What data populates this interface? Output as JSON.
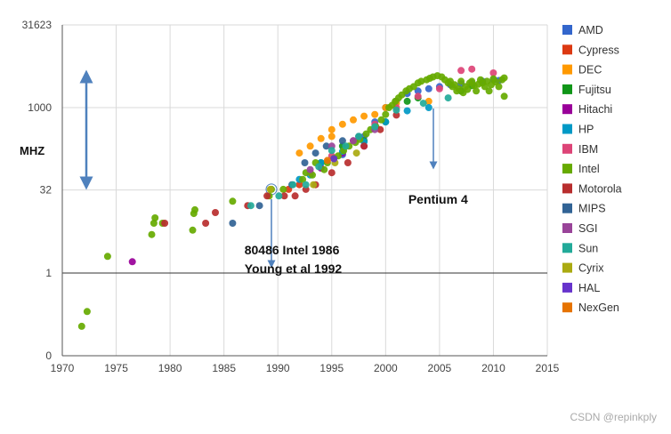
{
  "chart_data": {
    "type": "scatter",
    "title": "",
    "xlabel": "",
    "ylabel": "MHZ",
    "xlim": [
      1970,
      2015
    ],
    "ylim": [
      0.03162,
      31623
    ],
    "yscale": "log",
    "x_ticks": [
      1970,
      1975,
      1980,
      1985,
      1990,
      1995,
      2000,
      2005,
      2010,
      2015
    ],
    "y_ticks": [
      {
        "value": 0.03162,
        "label": "0"
      },
      {
        "value": 1,
        "label": "1"
      },
      {
        "value": 32,
        "label": "32"
      },
      {
        "value": 1000,
        "label": "1000"
      },
      {
        "value": 31623,
        "label": "31623"
      }
    ],
    "legend_position": "right",
    "series": [
      {
        "name": "AMD",
        "color": "#3366cc",
        "points": [
          [
            1996,
            140
          ],
          [
            1998,
            300
          ],
          [
            1999,
            550
          ],
          [
            2000,
            1000
          ],
          [
            2001,
            1300
          ],
          [
            2002,
            1800
          ],
          [
            2003,
            2000
          ],
          [
            2004,
            2200
          ],
          [
            2005,
            2400
          ],
          [
            2006,
            2600
          ],
          [
            2007,
            2700
          ],
          [
            2008,
            2800
          ],
          [
            2009,
            3000
          ],
          [
            2010,
            3200
          ],
          [
            2010.5,
            3100
          ]
        ]
      },
      {
        "name": "Cypress",
        "color": "#dc3912",
        "points": [
          [
            1991,
            33
          ],
          [
            1992,
            40
          ]
        ]
      },
      {
        "name": "DEC",
        "color": "#ff9900",
        "points": [
          [
            1992,
            150
          ],
          [
            1993,
            200
          ],
          [
            1994,
            275
          ],
          [
            1995,
            300
          ],
          [
            1995,
            400
          ],
          [
            1996,
            500
          ],
          [
            1997,
            600
          ],
          [
            1998,
            700
          ],
          [
            1999,
            750
          ],
          [
            2000,
            1000
          ],
          [
            2001,
            1200
          ],
          [
            2004,
            1300
          ]
        ]
      },
      {
        "name": "Fujitsu",
        "color": "#109618",
        "points": [
          [
            1994,
            100
          ],
          [
            1996,
            200
          ],
          [
            1998,
            250
          ],
          [
            2000,
            550
          ],
          [
            2002,
            1300
          ],
          [
            2003,
            1500
          ],
          [
            2007,
            2000
          ],
          [
            2008,
            2500
          ]
        ]
      },
      {
        "name": "Hitachi",
        "color": "#990099",
        "points": [
          [
            1976.5,
            1.6
          ],
          [
            1994,
            80
          ],
          [
            1996,
            150
          ],
          [
            1998,
            200
          ]
        ]
      },
      {
        "name": "HP",
        "color": "#0099c6",
        "points": [
          [
            1992,
            50
          ],
          [
            1993,
            60
          ],
          [
            1994,
            100
          ],
          [
            1996,
            160
          ],
          [
            1998,
            240
          ],
          [
            2000,
            550
          ],
          [
            2002,
            875
          ],
          [
            2004,
            1000
          ]
        ]
      },
      {
        "name": "IBM",
        "color": "#dd4477",
        "points": [
          [
            1993,
            66
          ],
          [
            1995,
            133
          ],
          [
            1997,
            250
          ],
          [
            1999,
            500
          ],
          [
            2001,
            1000
          ],
          [
            2003,
            1600
          ],
          [
            2005,
            2200
          ],
          [
            2007,
            4700
          ],
          [
            2008,
            5000
          ],
          [
            2010,
            4250
          ]
        ]
      },
      {
        "name": "Intel",
        "color": "#66aa00",
        "points": [
          [
            1971.8,
            0.108
          ],
          [
            1972.3,
            0.2
          ],
          [
            1974.2,
            2
          ],
          [
            1978.3,
            5
          ],
          [
            1978.5,
            8
          ],
          [
            1978.6,
            10
          ],
          [
            1979.3,
            8
          ],
          [
            1982.1,
            6
          ],
          [
            1982.2,
            12
          ],
          [
            1982.3,
            14
          ],
          [
            1985.8,
            20
          ],
          [
            1989.2,
            25
          ],
          [
            1989.4,
            33
          ],
          [
            1990.5,
            33
          ],
          [
            1992.3,
            50
          ],
          [
            1992.6,
            66
          ],
          [
            1993.2,
            60
          ],
          [
            1993.5,
            100
          ],
          [
            1994.3,
            75
          ],
          [
            1994.6,
            100
          ],
          [
            1995.2,
            120
          ],
          [
            1995.6,
            133
          ],
          [
            1996.1,
            166
          ],
          [
            1996.6,
            200
          ],
          [
            1997.2,
            233
          ],
          [
            1997.6,
            266
          ],
          [
            1998.2,
            333
          ],
          [
            1998.6,
            400
          ],
          [
            1999.1,
            450
          ],
          [
            1999.6,
            600
          ],
          [
            2000.0,
            750
          ],
          [
            2000.3,
            1000
          ],
          [
            2000.6,
            1100
          ],
          [
            2000.9,
            1300
          ],
          [
            2001.2,
            1500
          ],
          [
            2001.5,
            1700
          ],
          [
            2001.9,
            2000
          ],
          [
            2002.2,
            2200
          ],
          [
            2002.6,
            2400
          ],
          [
            2003.0,
            2800
          ],
          [
            2003.3,
            3000
          ],
          [
            2003.8,
            3200
          ],
          [
            2004.1,
            3400
          ],
          [
            2004.4,
            3600
          ],
          [
            2004.8,
            3800
          ],
          [
            2005.2,
            3600
          ],
          [
            2005.5,
            3200
          ],
          [
            2005.8,
            2800
          ],
          [
            2006.0,
            3000
          ],
          [
            2006.2,
            2400
          ],
          [
            2006.4,
            2600
          ],
          [
            2006.6,
            2000
          ],
          [
            2006.8,
            2200
          ],
          [
            2007.0,
            3000
          ],
          [
            2007.2,
            1866
          ],
          [
            2007.4,
            2400
          ],
          [
            2007.6,
            2133
          ],
          [
            2007.8,
            2800
          ],
          [
            2008.0,
            3000
          ],
          [
            2008.2,
            2500
          ],
          [
            2008.4,
            2000
          ],
          [
            2008.6,
            2660
          ],
          [
            2008.8,
            3200
          ],
          [
            2009.0,
            2800
          ],
          [
            2009.2,
            2400
          ],
          [
            2009.4,
            3000
          ],
          [
            2009.6,
            2000
          ],
          [
            2009.8,
            2600
          ],
          [
            2010.0,
            3330
          ],
          [
            2010.2,
            2930
          ],
          [
            2010.5,
            2400
          ],
          [
            2010.8,
            3200
          ],
          [
            2011.0,
            3460
          ],
          [
            2011.0,
            1600
          ]
        ]
      },
      {
        "name": "Motorola",
        "color": "#b82e2e",
        "points": [
          [
            1979.5,
            8
          ],
          [
            1983.3,
            8
          ],
          [
            1984.2,
            12.5
          ],
          [
            1987.2,
            16.7
          ],
          [
            1989.0,
            25
          ],
          [
            1990.6,
            25
          ],
          [
            1991.6,
            25
          ],
          [
            1992.6,
            33
          ],
          [
            1993.5,
            40
          ],
          [
            1995.0,
            66
          ],
          [
            1996.5,
            100
          ],
          [
            1998.0,
            200
          ],
          [
            1999.5,
            400
          ],
          [
            2001.0,
            733
          ]
        ]
      },
      {
        "name": "MIPS",
        "color": "#316395",
        "points": [
          [
            1985.8,
            8
          ],
          [
            1988.3,
            16.7
          ],
          [
            1991.3,
            40
          ],
          [
            1992.5,
            100
          ],
          [
            1993.5,
            150
          ],
          [
            1994.5,
            200
          ],
          [
            1996.0,
            250
          ],
          [
            1997.5,
            300
          ]
        ]
      },
      {
        "name": "SGI",
        "color": "#994499",
        "points": [
          [
            1993,
            75
          ],
          [
            1995,
            200
          ],
          [
            1997,
            250
          ],
          [
            1999,
            400
          ]
        ]
      },
      {
        "name": "Sun",
        "color": "#22aa99",
        "points": [
          [
            1987.5,
            16.7
          ],
          [
            1990.1,
            25
          ],
          [
            1991.4,
            40
          ],
          [
            1992.6,
            40
          ],
          [
            1993.8,
            85
          ],
          [
            1995.0,
            167
          ],
          [
            1996.3,
            200
          ],
          [
            1997.5,
            300
          ],
          [
            1999.0,
            450
          ],
          [
            2001.0,
            900
          ],
          [
            2003.5,
            1200
          ],
          [
            2005.8,
            1500
          ]
        ]
      },
      {
        "name": "Cyrix",
        "color": "#aaaa11",
        "points": [
          [
            1989.3,
            33
          ],
          [
            1993.3,
            40
          ],
          [
            1995.3,
            100
          ],
          [
            1997.3,
            150
          ]
        ]
      },
      {
        "name": "HAL",
        "color": "#6633cc",
        "points": [
          [
            1995.2,
            118
          ]
        ]
      },
      {
        "name": "NexGen",
        "color": "#e67300",
        "points": [
          [
            1994.6,
            110
          ]
        ]
      }
    ],
    "annotations": [
      {
        "text": "80486 Intel 1986",
        "x": 1989.3,
        "y": 2.2
      },
      {
        "text": "Young et al 1992",
        "x": 1989.3,
        "y": 1.0
      },
      {
        "text": "Pentium 4",
        "x": 2004.5,
        "y": 18
      }
    ]
  },
  "watermark": "CSDN @repinkply"
}
